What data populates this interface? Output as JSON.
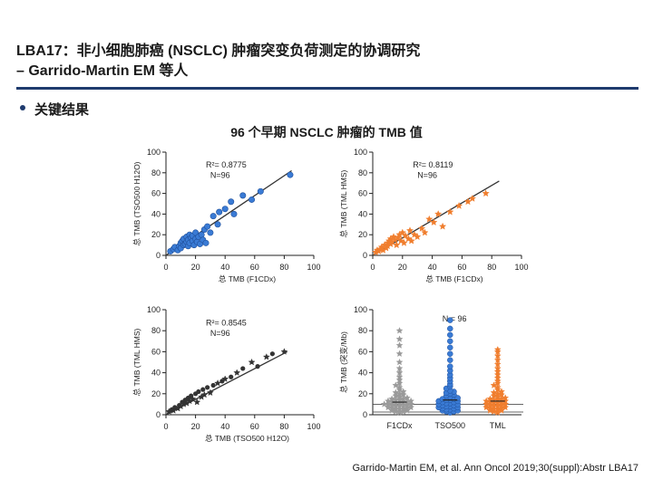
{
  "slide": {
    "title_line1": "LBA17：非小细胞肺癌 (NSCLC) 肿瘤突变负荷测定的协调研究",
    "title_line2": "– Garrido-Martin EM 等人",
    "bullet": "关键结果",
    "subtitle": "96 个早期 NSCLC 肿瘤的 TMB 值",
    "citation": "Garrido-Martin EM, et al. Ann Oncol 2019;30(suppl):Abstr LBA17",
    "colors": {
      "blue": "#3a7bd5",
      "orange": "#f07e2e",
      "gray": "#9a9a9a",
      "dark": "#333333",
      "rule": "#1f3b6e"
    }
  },
  "chart_data": [
    {
      "id": "p1",
      "type": "scatter",
      "xlabel": "总 TMB (F1CDx)",
      "ylabel": "总 TMB (TSO500 H12O)",
      "xlim": [
        0,
        100
      ],
      "ylim": [
        0,
        100
      ],
      "xticks": [
        "0",
        "20",
        "40",
        "60",
        "80",
        "100"
      ],
      "yticks": [
        "0",
        "20",
        "40",
        "60",
        "80",
        "100"
      ],
      "annotation_r2": "R²= 0.8775",
      "annotation_n": "N=96",
      "color": "#3a7bd5",
      "marker": "circle",
      "fit": [
        [
          0,
          -3
        ],
        [
          85,
          82
        ]
      ],
      "x": [
        3,
        5,
        6,
        8,
        9,
        10,
        10,
        11,
        12,
        12,
        13,
        14,
        14,
        15,
        15,
        16,
        16,
        17,
        18,
        18,
        19,
        20,
        20,
        21,
        22,
        23,
        24,
        25,
        26,
        27,
        28,
        30,
        32,
        35,
        36,
        40,
        44,
        46,
        52,
        58,
        64,
        84
      ],
      "y": [
        4,
        6,
        8,
        5,
        9,
        12,
        7,
        14,
        10,
        16,
        11,
        13,
        18,
        9,
        15,
        12,
        20,
        17,
        14,
        19,
        10,
        16,
        22,
        13,
        18,
        11,
        20,
        15,
        25,
        12,
        28,
        22,
        38,
        30,
        42,
        45,
        52,
        40,
        58,
        54,
        62,
        78
      ]
    },
    {
      "id": "p2",
      "type": "scatter",
      "xlabel": "总 TMB (F1CDx)",
      "ylabel": "总 TMB (TML HMS)",
      "xlim": [
        0,
        100
      ],
      "ylim": [
        0,
        100
      ],
      "xticks": [
        "0",
        "20",
        "40",
        "60",
        "80",
        "100"
      ],
      "yticks": [
        "0",
        "20",
        "40",
        "60",
        "80",
        "100"
      ],
      "annotation_r2": "R²= 0.8119",
      "annotation_n": "N=96",
      "color": "#f07e2e",
      "marker": "star",
      "fit": [
        [
          0,
          -2
        ],
        [
          85,
          72
        ]
      ],
      "x": [
        2,
        3,
        4,
        5,
        6,
        7,
        8,
        9,
        10,
        10,
        11,
        12,
        12,
        13,
        14,
        15,
        16,
        17,
        18,
        19,
        20,
        21,
        22,
        24,
        25,
        26,
        28,
        30,
        33,
        35,
        38,
        41,
        44,
        47,
        52,
        58,
        64,
        67,
        76
      ],
      "y": [
        3,
        5,
        4,
        6,
        8,
        5,
        10,
        7,
        12,
        9,
        14,
        11,
        16,
        13,
        18,
        15,
        10,
        17,
        20,
        14,
        22,
        12,
        19,
        16,
        24,
        14,
        20,
        18,
        26,
        22,
        35,
        32,
        40,
        28,
        42,
        48,
        52,
        55,
        60
      ]
    },
    {
      "id": "p3",
      "type": "scatter",
      "xlabel": "总 TMB (TSO500 H12O)",
      "ylabel": "总 TMB (TML HMS)",
      "xlim": [
        0,
        100
      ],
      "ylim": [
        0,
        100
      ],
      "xticks": [
        "0",
        "20",
        "40",
        "60",
        "80",
        "100"
      ],
      "yticks": [
        "0",
        "20",
        "40",
        "60",
        "80",
        "100"
      ],
      "annotation_r2": "R²= 0.8545",
      "annotation_n": "N=96",
      "color": "#333333",
      "marker": "mixed",
      "fit": [
        [
          0,
          -3
        ],
        [
          82,
          60
        ]
      ],
      "x": [
        2,
        4,
        5,
        6,
        8,
        9,
        10,
        11,
        12,
        13,
        14,
        15,
        16,
        17,
        18,
        20,
        21,
        22,
        24,
        25,
        26,
        28,
        30,
        32,
        35,
        38,
        40,
        44,
        48,
        52,
        58,
        62,
        68,
        72,
        80
      ],
      "y": [
        3,
        5,
        4,
        7,
        6,
        9,
        8,
        12,
        10,
        14,
        11,
        16,
        13,
        18,
        15,
        20,
        12,
        22,
        17,
        24,
        19,
        26,
        21,
        28,
        30,
        32,
        34,
        36,
        40,
        44,
        50,
        46,
        55,
        58,
        60
      ]
    },
    {
      "id": "p4",
      "type": "scatter",
      "title": "N = 96",
      "ylabel": "总 TMB (突变/Mb)",
      "categories": [
        "F1CDx",
        "TSO500",
        "TML"
      ],
      "ylim": [
        0,
        100
      ],
      "yticks": [
        "0",
        "20",
        "40",
        "60",
        "80",
        "100"
      ],
      "series": [
        {
          "name": "F1CDx",
          "color": "#9a9a9a",
          "marker": "star",
          "median": 12,
          "values": [
            2,
            3,
            3,
            4,
            4,
            5,
            5,
            5,
            6,
            6,
            7,
            7,
            8,
            8,
            8,
            9,
            9,
            10,
            10,
            10,
            11,
            11,
            12,
            12,
            12,
            13,
            13,
            14,
            14,
            15,
            15,
            16,
            17,
            18,
            19,
            20,
            21,
            22,
            24,
            26,
            28,
            30,
            33,
            36,
            40,
            44,
            50,
            58,
            66,
            72,
            80
          ]
        },
        {
          "name": "TSO500",
          "color": "#3a7bd5",
          "marker": "circle",
          "median": 14,
          "values": [
            2,
            3,
            3,
            4,
            4,
            5,
            5,
            6,
            6,
            7,
            7,
            8,
            8,
            9,
            9,
            10,
            10,
            11,
            11,
            12,
            12,
            13,
            13,
            14,
            14,
            15,
            15,
            16,
            17,
            18,
            19,
            20,
            21,
            22,
            23,
            25,
            27,
            29,
            32,
            35,
            38,
            42,
            46,
            52,
            58,
            64,
            70,
            76,
            82,
            90
          ]
        },
        {
          "name": "TML",
          "color": "#f07e2e",
          "marker": "star",
          "median": 13,
          "values": [
            2,
            3,
            4,
            4,
            5,
            5,
            6,
            6,
            7,
            7,
            8,
            8,
            9,
            9,
            10,
            10,
            11,
            11,
            12,
            12,
            13,
            13,
            14,
            14,
            15,
            15,
            16,
            17,
            18,
            19,
            20,
            21,
            22,
            24,
            26,
            28,
            30,
            32,
            35,
            38,
            41,
            44,
            48,
            52,
            56,
            60,
            62
          ]
        }
      ],
      "reference_lines": [
        10,
        0
      ]
    }
  ]
}
